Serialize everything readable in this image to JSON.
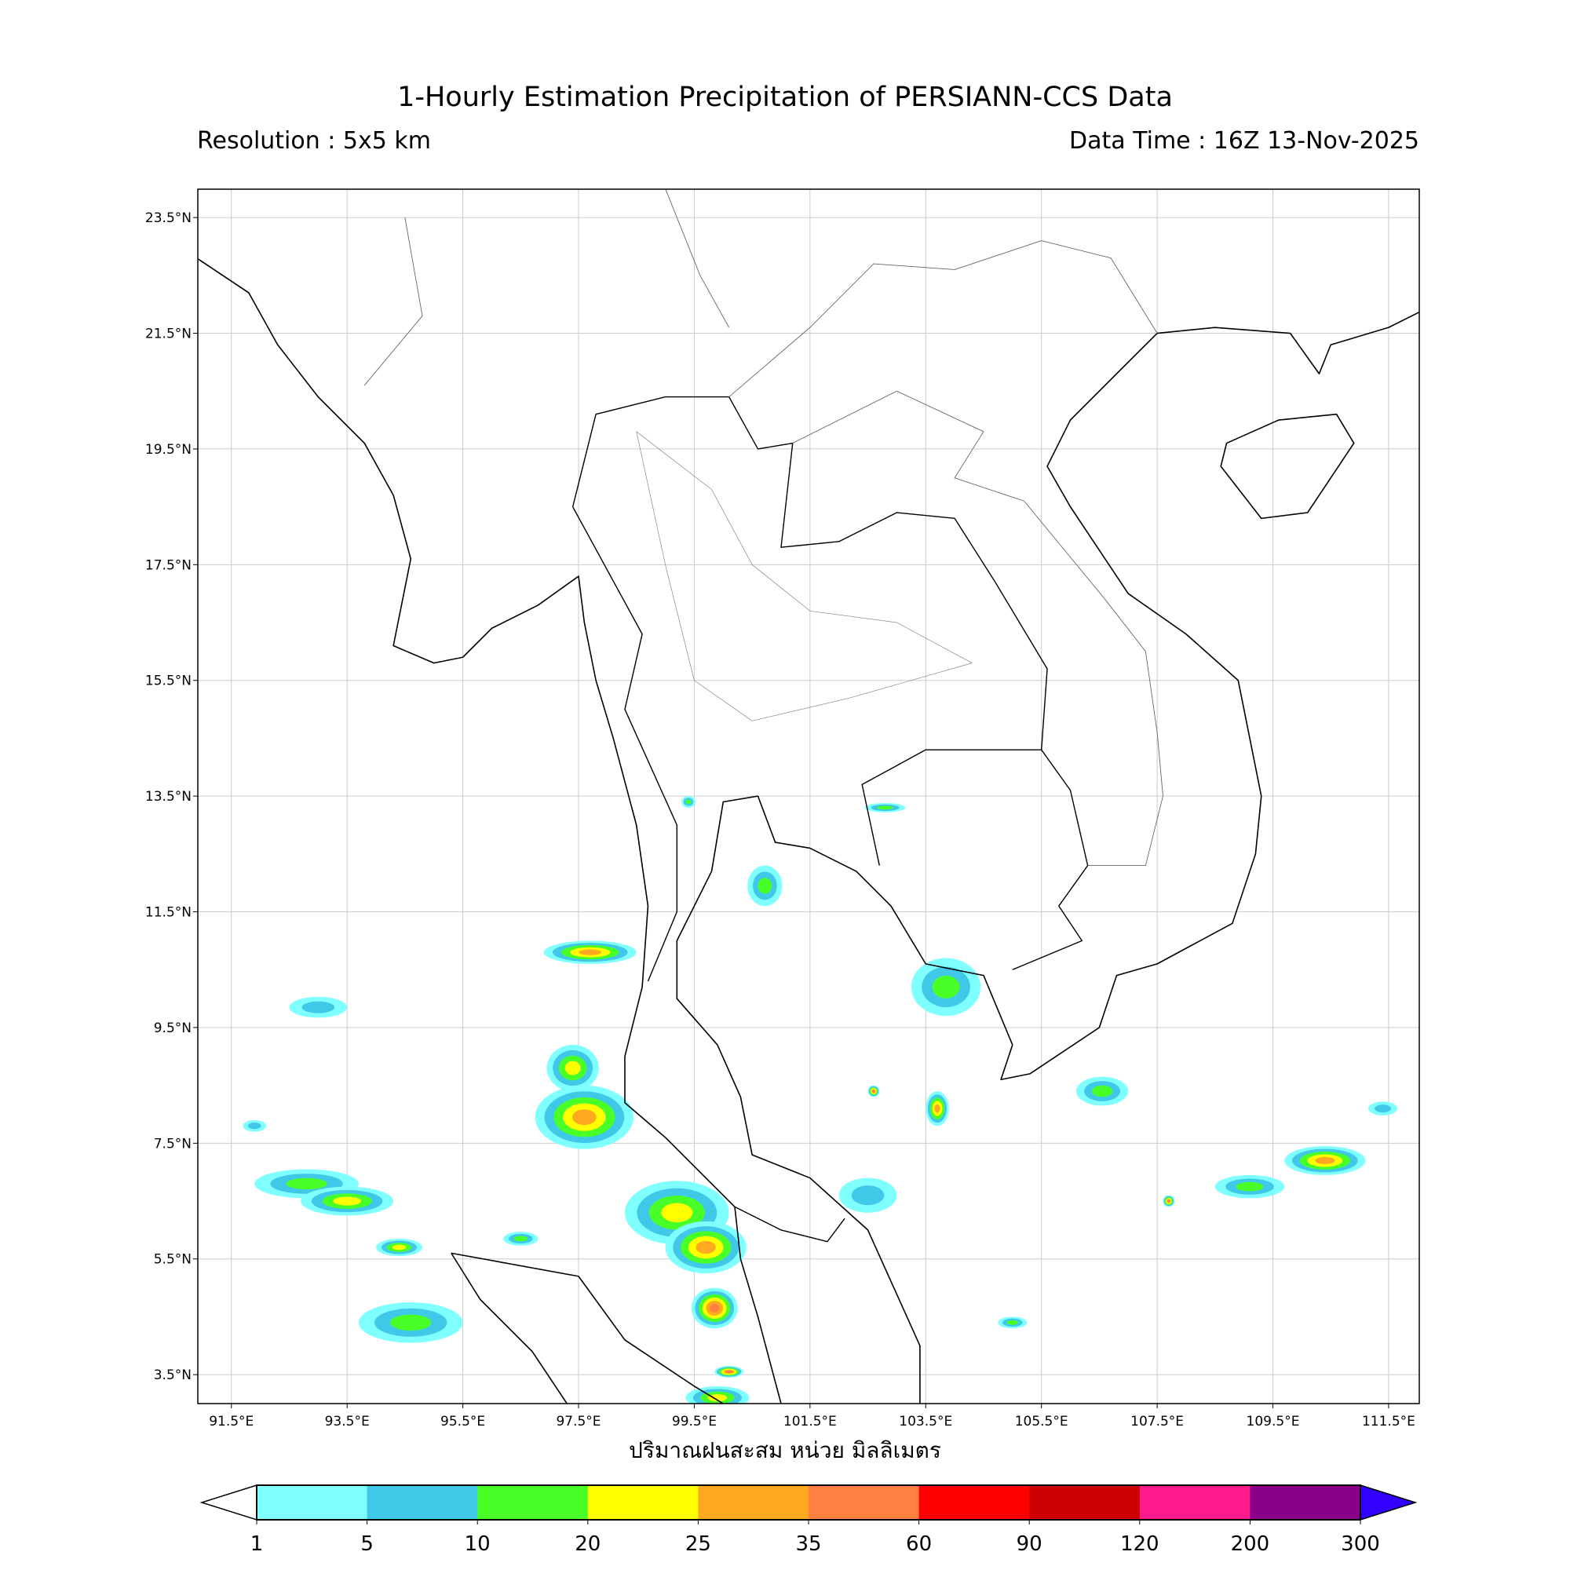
{
  "header": {
    "title": "1-Hourly Estimation Precipitation of PERSIANN-CCS Data",
    "resolution": "Resolution : 5x5 km",
    "data_time": "Data Time : 16Z 13-Nov-2025"
  },
  "map": {
    "extent": {
      "lon_min": 90.92,
      "lon_max": 112.03,
      "lat_min": 3.0,
      "lat_max": 23.99
    },
    "lon_ticks": [
      91.5,
      93.5,
      95.5,
      97.5,
      99.5,
      101.5,
      103.5,
      105.5,
      107.5,
      109.5,
      111.5
    ],
    "lon_tick_labels": [
      "91.5°E",
      "93.5°E",
      "95.5°E",
      "97.5°E",
      "99.5°E",
      "101.5°E",
      "103.5°E",
      "105.5°E",
      "107.5°E",
      "109.5°E",
      "111.5°E"
    ],
    "lat_ticks": [
      23.5,
      21.5,
      19.5,
      17.5,
      15.5,
      13.5,
      11.5,
      9.5,
      7.5,
      5.5,
      3.5
    ],
    "lat_tick_labels": [
      "23.5°N",
      "21.5°N",
      "19.5°N",
      "17.5°N",
      "15.5°N",
      "13.5°N",
      "11.5°N",
      "9.5°N",
      "7.5°N",
      "5.5°N",
      "3.5°N"
    ],
    "gridlines": true,
    "xlabel": "ปริมาณฝนสะสม หน่วย มิลลิเมตร",
    "rain_cells": [
      {
        "lon": 97.6,
        "lat": 7.95,
        "rx": 0.85,
        "ry": 0.55,
        "level": 4
      },
      {
        "lon": 97.4,
        "lat": 8.8,
        "rx": 0.45,
        "ry": 0.4,
        "level": 3
      },
      {
        "lon": 99.2,
        "lat": 6.3,
        "rx": 0.9,
        "ry": 0.55,
        "level": 3
      },
      {
        "lon": 99.7,
        "lat": 5.7,
        "rx": 0.7,
        "ry": 0.45,
        "level": 4
      },
      {
        "lon": 99.85,
        "lat": 4.65,
        "rx": 0.4,
        "ry": 0.35,
        "level": 5
      },
      {
        "lon": 92.8,
        "lat": 6.8,
        "rx": 0.9,
        "ry": 0.25,
        "level": 2
      },
      {
        "lon": 93.5,
        "lat": 6.5,
        "rx": 0.8,
        "ry": 0.25,
        "level": 3
      },
      {
        "lon": 100.72,
        "lat": 11.95,
        "rx": 0.3,
        "ry": 0.35,
        "level": 2
      },
      {
        "lon": 103.85,
        "lat": 10.2,
        "rx": 0.6,
        "ry": 0.5,
        "level": 2
      },
      {
        "lon": 106.55,
        "lat": 8.4,
        "rx": 0.45,
        "ry": 0.25,
        "level": 2
      },
      {
        "lon": 110.4,
        "lat": 7.2,
        "rx": 0.7,
        "ry": 0.25,
        "level": 4
      },
      {
        "lon": 94.6,
        "lat": 4.4,
        "rx": 0.9,
        "ry": 0.35,
        "level": 2
      },
      {
        "lon": 93.0,
        "lat": 9.85,
        "rx": 0.5,
        "ry": 0.18,
        "level": 1
      },
      {
        "lon": 97.7,
        "lat": 10.8,
        "rx": 0.8,
        "ry": 0.2,
        "level": 4
      },
      {
        "lon": 109.1,
        "lat": 6.75,
        "rx": 0.6,
        "ry": 0.2,
        "level": 2
      },
      {
        "lon": 102.5,
        "lat": 6.6,
        "rx": 0.5,
        "ry": 0.3,
        "level": 1
      },
      {
        "lon": 99.9,
        "lat": 3.1,
        "rx": 0.55,
        "ry": 0.2,
        "level": 3
      },
      {
        "lon": 94.4,
        "lat": 5.7,
        "rx": 0.4,
        "ry": 0.15,
        "level": 3
      },
      {
        "lon": 103.7,
        "lat": 8.1,
        "rx": 0.2,
        "ry": 0.3,
        "level": 4
      },
      {
        "lon": 107.7,
        "lat": 6.5,
        "rx": 0.1,
        "ry": 0.1,
        "level": 5
      },
      {
        "lon": 96.5,
        "lat": 5.85,
        "rx": 0.3,
        "ry": 0.12,
        "level": 2
      },
      {
        "lon": 100.1,
        "lat": 3.55,
        "rx": 0.25,
        "ry": 0.1,
        "level": 5
      },
      {
        "lon": 105.0,
        "lat": 4.4,
        "rx": 0.25,
        "ry": 0.1,
        "level": 2
      },
      {
        "lon": 102.8,
        "lat": 13.3,
        "rx": 0.35,
        "ry": 0.08,
        "level": 2
      },
      {
        "lon": 102.6,
        "lat": 8.4,
        "rx": 0.1,
        "ry": 0.1,
        "level": 5
      },
      {
        "lon": 99.4,
        "lat": 13.4,
        "rx": 0.12,
        "ry": 0.1,
        "level": 2
      },
      {
        "lon": 91.9,
        "lat": 7.8,
        "rx": 0.2,
        "ry": 0.1,
        "level": 1
      },
      {
        "lon": 111.4,
        "lat": 8.1,
        "rx": 0.25,
        "ry": 0.12,
        "level": 1
      }
    ]
  },
  "colorbar": {
    "boundaries": [
      "1",
      "5",
      "10",
      "20",
      "25",
      "35",
      "60",
      "90",
      "120",
      "200",
      "300"
    ],
    "colors": [
      "#80ffff",
      "#40c8e8",
      "#48ff28",
      "#ffff00",
      "#ffa820",
      "#ff8040",
      "#ff0000",
      "#cc0000",
      "#ff1a8c",
      "#8a008a"
    ],
    "under_color": "#ffffff",
    "over_color": "#3300ff"
  }
}
